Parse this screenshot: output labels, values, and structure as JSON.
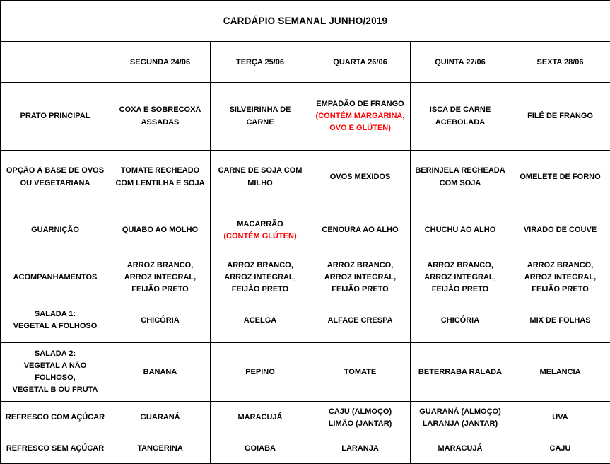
{
  "title": "CARDÁPIO SEMANAL JUNHO/2019",
  "colors": {
    "allergen_red": "#FF0000",
    "text": "#000000",
    "border": "#000000",
    "background": "#FFFFFF"
  },
  "table": {
    "columns": [
      "SEGUNDA 24/06",
      "TERÇA 25/06",
      "QUARTA 26/06",
      "QUINTA 27/06",
      "SEXTA 28/06"
    ],
    "rows": [
      {
        "label_lines": [
          "PRATO PRINCIPAL"
        ],
        "cells": [
          {
            "parts": [
              {
                "text": "COXA E SOBRECOXA ASSADAS",
                "red": false
              }
            ]
          },
          {
            "parts": [
              {
                "text": "SILVEIRINHA DE CARNE",
                "red": false
              }
            ]
          },
          {
            "parts": [
              {
                "text": "EMPADÃO DE FRANGO",
                "red": false
              },
              {
                "text": "(CONTÉM MARGARINA, OVO E GLÚTEN)",
                "red": true
              }
            ]
          },
          {
            "parts": [
              {
                "text": "ISCA DE CARNE ACEBOLADA",
                "red": false
              }
            ]
          },
          {
            "parts": [
              {
                "text": "FILÉ DE FRANGO",
                "red": false
              }
            ]
          }
        ]
      },
      {
        "label_lines": [
          "OPÇÃO À BASE DE OVOS",
          "OU VEGETARIANA"
        ],
        "cells": [
          {
            "parts": [
              {
                "text": "TOMATE RECHEADO COM LENTILHA E SOJA",
                "red": false
              }
            ]
          },
          {
            "parts": [
              {
                "text": "CARNE DE SOJA COM MILHO",
                "red": false
              }
            ]
          },
          {
            "parts": [
              {
                "text": "OVOS MEXIDOS",
                "red": false
              }
            ]
          },
          {
            "parts": [
              {
                "text": "BERINJELA RECHEADA COM SOJA",
                "red": false
              }
            ]
          },
          {
            "parts": [
              {
                "text": "OMELETE DE FORNO",
                "red": false
              }
            ]
          }
        ]
      },
      {
        "label_lines": [
          "GUARNIÇÃO"
        ],
        "cells": [
          {
            "parts": [
              {
                "text": "QUIABO AO MOLHO",
                "red": false
              }
            ]
          },
          {
            "parts": [
              {
                "text": "MACARRÃO",
                "red": false
              },
              {
                "text": "(CONTÉM GLÚTEN)",
                "red": true
              }
            ]
          },
          {
            "parts": [
              {
                "text": "CENOURA AO ALHO",
                "red": false
              }
            ]
          },
          {
            "parts": [
              {
                "text": "CHUCHU AO ALHO",
                "red": false
              }
            ]
          },
          {
            "parts": [
              {
                "text": "VIRADO DE COUVE",
                "red": false
              }
            ]
          }
        ]
      },
      {
        "label_lines": [
          "ACOMPANHAMENTOS"
        ],
        "cells": [
          {
            "parts": [
              {
                "text": "ARROZ BRANCO, ARROZ INTEGRAL, FEIJÃO PRETO",
                "red": false
              }
            ]
          },
          {
            "parts": [
              {
                "text": "ARROZ BRANCO, ARROZ INTEGRAL, FEIJÃO PRETO",
                "red": false
              }
            ]
          },
          {
            "parts": [
              {
                "text": "ARROZ BRANCO, ARROZ INTEGRAL, FEIJÃO PRETO",
                "red": false
              }
            ]
          },
          {
            "parts": [
              {
                "text": "ARROZ BRANCO, ARROZ INTEGRAL, FEIJÃO PRETO",
                "red": false
              }
            ]
          },
          {
            "parts": [
              {
                "text": "ARROZ BRANCO, ARROZ INTEGRAL, FEIJÃO PRETO",
                "red": false
              }
            ]
          }
        ]
      },
      {
        "label_lines": [
          "SALADA 1:",
          "VEGETAL A FOLHOSO"
        ],
        "cells": [
          {
            "parts": [
              {
                "text": "CHICÓRIA",
                "red": false
              }
            ]
          },
          {
            "parts": [
              {
                "text": "ACELGA",
                "red": false
              }
            ]
          },
          {
            "parts": [
              {
                "text": "ALFACE CRESPA",
                "red": false
              }
            ]
          },
          {
            "parts": [
              {
                "text": "CHICÓRIA",
                "red": false
              }
            ]
          },
          {
            "parts": [
              {
                "text": "MIX DE FOLHAS",
                "red": false
              }
            ]
          }
        ]
      },
      {
        "label_lines": [
          "SALADA 2:",
          "VEGETAL A NÃO FOLHOSO,",
          "VEGETAL B OU FRUTA"
        ],
        "cells": [
          {
            "parts": [
              {
                "text": "BANANA",
                "red": false
              }
            ]
          },
          {
            "parts": [
              {
                "text": "PEPINO",
                "red": false
              }
            ]
          },
          {
            "parts": [
              {
                "text": "TOMATE",
                "red": false
              }
            ]
          },
          {
            "parts": [
              {
                "text": "BETERRABA RALADA",
                "red": false
              }
            ]
          },
          {
            "parts": [
              {
                "text": "MELANCIA",
                "red": false
              }
            ]
          }
        ]
      },
      {
        "label_lines": [
          "REFRESCO COM AÇÚCAR"
        ],
        "cells": [
          {
            "parts": [
              {
                "text": "GUARANÁ",
                "red": false
              }
            ]
          },
          {
            "parts": [
              {
                "text": "MARACUJÁ",
                "red": false
              }
            ]
          },
          {
            "parts": [
              {
                "text": "CAJU (ALMOÇO)",
                "red": false
              },
              {
                "text": "LIMÃO (JANTAR)",
                "red": false
              }
            ]
          },
          {
            "parts": [
              {
                "text": "GUARANÁ (ALMOÇO)",
                "red": false
              },
              {
                "text": "LARANJA (JANTAR)",
                "red": false
              }
            ]
          },
          {
            "parts": [
              {
                "text": "UVA",
                "red": false
              }
            ]
          }
        ]
      },
      {
        "label_lines": [
          "REFRESCO SEM AÇÚCAR"
        ],
        "cells": [
          {
            "parts": [
              {
                "text": "TANGERINA",
                "red": false
              }
            ]
          },
          {
            "parts": [
              {
                "text": "GOIABA",
                "red": false
              }
            ]
          },
          {
            "parts": [
              {
                "text": "LARANJA",
                "red": false
              }
            ]
          },
          {
            "parts": [
              {
                "text": "MARACUJÁ",
                "red": false
              }
            ]
          },
          {
            "parts": [
              {
                "text": "CAJU",
                "red": false
              }
            ]
          }
        ]
      }
    ]
  }
}
